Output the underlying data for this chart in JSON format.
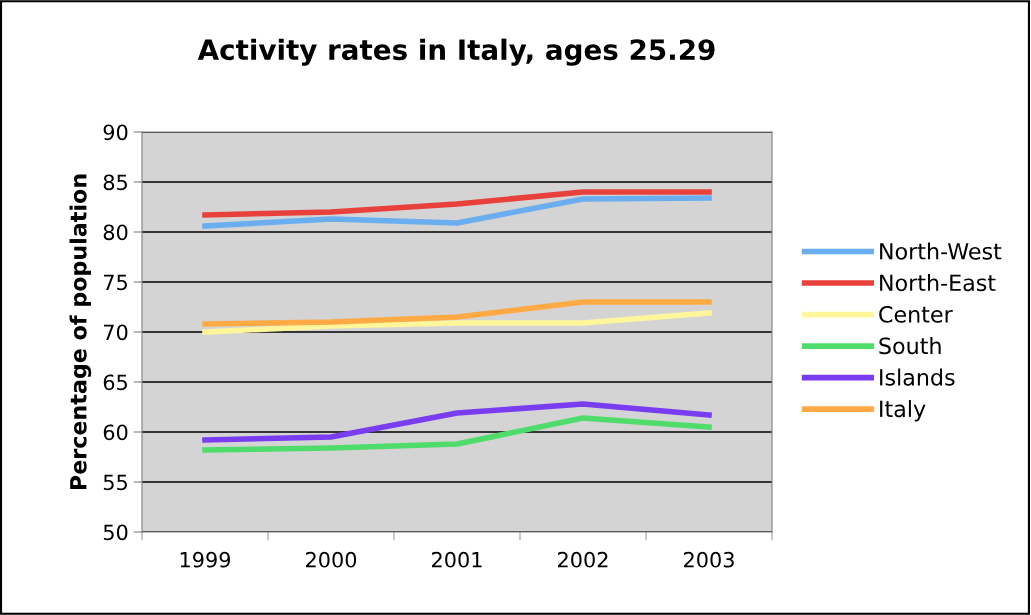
{
  "chart_data": {
    "type": "line",
    "title": "Activity rates in Italy, ages 25.29",
    "ylabel": "Percentage of population",
    "categories": [
      "1999",
      "2000",
      "2001",
      "2002",
      "2003"
    ],
    "series": [
      {
        "name": "North-West",
        "color": "#6aaef0",
        "values": [
          80.6,
          81.3,
          80.9,
          83.3,
          83.4
        ]
      },
      {
        "name": "North-East",
        "color": "#e8413c",
        "values": [
          81.7,
          82.0,
          82.8,
          84.0,
          84.0
        ]
      },
      {
        "name": "Center",
        "color": "#fff59a",
        "values": [
          70.0,
          70.6,
          70.9,
          70.9,
          71.9
        ]
      },
      {
        "name": "South",
        "color": "#4fdc6a",
        "values": [
          58.2,
          58.4,
          58.8,
          61.4,
          60.5
        ]
      },
      {
        "name": "Islands",
        "color": "#7a3cf0",
        "values": [
          59.2,
          59.5,
          61.9,
          62.8,
          61.7
        ]
      },
      {
        "name": "Italy",
        "color": "#ffaa44",
        "values": [
          70.8,
          71.0,
          71.5,
          73.0,
          73.0
        ]
      }
    ],
    "ylim": [
      50,
      90
    ],
    "yticks": [
      50,
      55,
      60,
      65,
      70,
      75,
      80,
      85,
      90
    ],
    "grid": "y",
    "legend": "right",
    "marker": "none",
    "line_style": "solid"
  }
}
